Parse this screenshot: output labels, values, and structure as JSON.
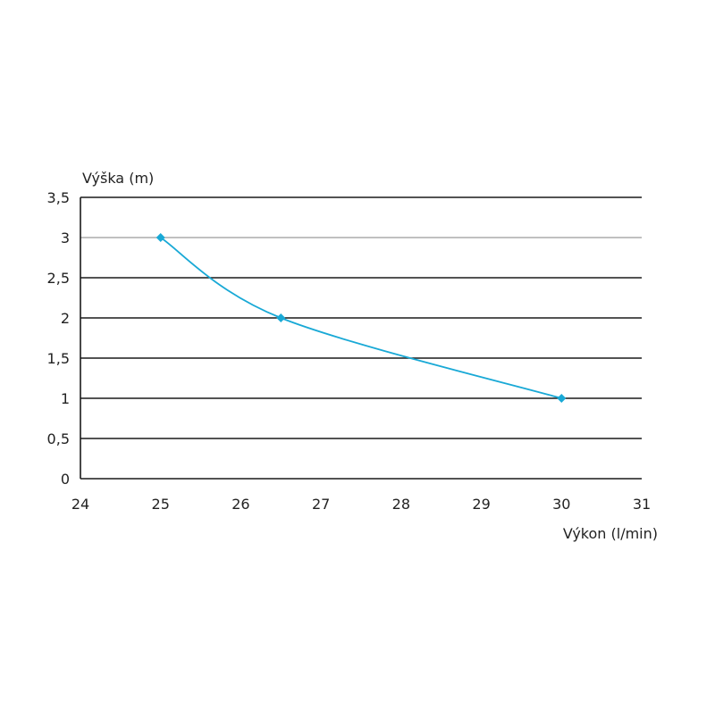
{
  "chart_data": {
    "type": "line",
    "title": "",
    "xlabel": "Výkon (l/min)",
    "ylabel": "Výška (m)",
    "xlim": [
      24,
      31
    ],
    "ylim": [
      0,
      3.5
    ],
    "x_ticks": [
      24,
      25,
      26,
      27,
      28,
      29,
      30,
      31
    ],
    "y_ticks": [
      0,
      0.5,
      1,
      1.5,
      2,
      2.5,
      3,
      3.5
    ],
    "x_tick_labels": [
      "24",
      "25",
      "26",
      "27",
      "28",
      "29",
      "30",
      "31"
    ],
    "y_tick_labels": [
      "0",
      "0,5",
      "1",
      "1,5",
      "2",
      "2,5",
      "3",
      "3,5"
    ],
    "grid": true,
    "series": [
      {
        "x": [
          25,
          26.5,
          30
        ],
        "y": [
          3,
          2,
          1
        ],
        "color": "#19a9d6",
        "marker": "diamond",
        "smooth": true
      }
    ],
    "colors": {
      "gridline": "#1a1a1a",
      "gridline_light": "#9a9a9a",
      "axis": "#1a1a1a"
    }
  }
}
